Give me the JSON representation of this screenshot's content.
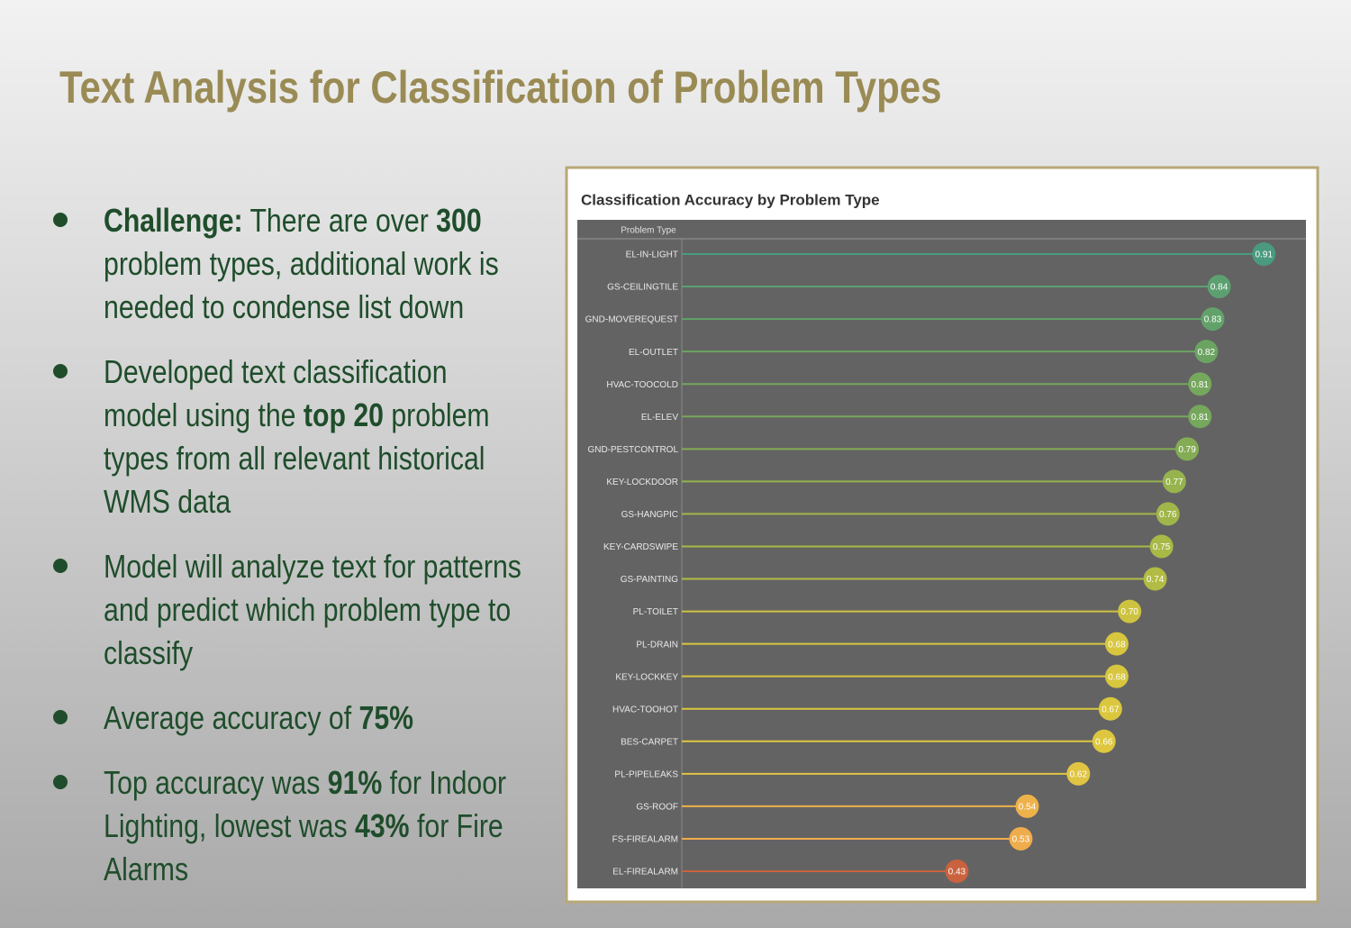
{
  "title": "Text Analysis for Classification of Problem Types",
  "bullets": [
    [
      {
        "text": "Challenge:",
        "bold": true
      },
      {
        "text": " There are over "
      },
      {
        "text": "300",
        "bold": true
      },
      {
        "text": " problem types, additional work is needed to condense list down"
      }
    ],
    [
      {
        "text": "Developed text classification model using the "
      },
      {
        "text": "top 20",
        "bold": true
      },
      {
        "text": " problem types from all relevant historical WMS data"
      }
    ],
    [
      {
        "text": "Model will analyze text for patterns and predict which problem type to classify"
      }
    ],
    [
      {
        "text": "Average accuracy of "
      },
      {
        "text": "75%",
        "bold": true
      }
    ],
    [
      {
        "text": "Top accuracy was "
      },
      {
        "text": "91%",
        "bold": true
      },
      {
        "text": " for Indoor Lighting, lowest was "
      },
      {
        "text": "43%",
        "bold": true
      },
      {
        "text": " for Fire Alarms"
      }
    ]
  ],
  "chart_data": {
    "type": "lollipop",
    "title": "Classification Accuracy by Problem Type",
    "category_header": "Problem Type",
    "categories": [
      "EL-IN-LIGHT",
      "GS-CEILINGTILE",
      "GND-MOVEREQUEST",
      "EL-OUTLET",
      "HVAC-TOOCOLD",
      "EL-ELEV",
      "GND-PESTCONTROL",
      "KEY-LOCKDOOR",
      "GS-HANGPIC",
      "KEY-CARDSWIPE",
      "GS-PAINTING",
      "PL-TOILET",
      "PL-DRAIN",
      "KEY-LOCKKEY",
      "HVAC-TOOHOT",
      "BES-CARPET",
      "PL-PIPELEAKS",
      "GS-ROOF",
      "FS-FIREALARM",
      "EL-FIREALARM"
    ],
    "values": [
      0.91,
      0.84,
      0.83,
      0.82,
      0.81,
      0.81,
      0.79,
      0.77,
      0.76,
      0.75,
      0.74,
      0.7,
      0.68,
      0.68,
      0.67,
      0.66,
      0.62,
      0.54,
      0.53,
      0.43
    ],
    "value_labels": [
      "0.91",
      "0.84",
      "0.83",
      "0.82",
      "0.81",
      "0.81",
      "0.79",
      "0.77",
      "0.76",
      "0.75",
      "0.74",
      "0.70",
      "0.68",
      "0.68",
      "0.67",
      "0.66",
      "0.62",
      "0.54",
      "0.53",
      "0.43"
    ],
    "colors": [
      "#4a9a80",
      "#5ca070",
      "#62a26a",
      "#6ba462",
      "#75a75c",
      "#75a75c",
      "#84ac55",
      "#96b34e",
      "#a0b64a",
      "#a9b946",
      "#b2bc44",
      "#cdc340",
      "#d7c63e",
      "#d7c63e",
      "#dbc73e",
      "#dec73e",
      "#e0c442",
      "#eeb24a",
      "#efac4c",
      "#c9623e"
    ],
    "xlim": [
      0,
      0.98
    ]
  }
}
